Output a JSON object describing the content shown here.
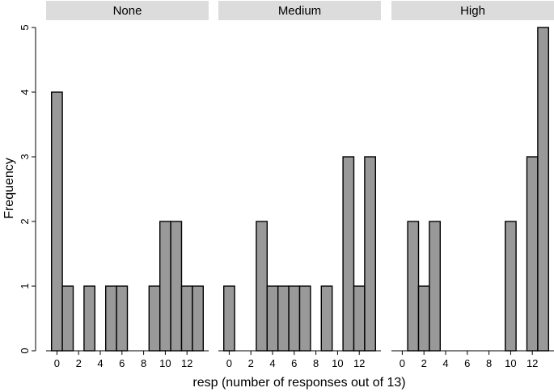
{
  "chart_data": {
    "type": "bar",
    "subtype": "faceted-histogram",
    "xlabel": "resp (number of responses out of 13)",
    "ylabel": "Frequency",
    "x_ticks": [
      0,
      2,
      4,
      6,
      8,
      10,
      12
    ],
    "y_ticks": [
      0,
      1,
      2,
      3,
      4,
      5
    ],
    "xlim": [
      -1,
      14
    ],
    "ylim": [
      0,
      5
    ],
    "bar_color": "#999999",
    "strip_color": "#dcdcdc",
    "panels": [
      {
        "label": "None",
        "bars": [
          {
            "x": 0,
            "y": 4
          },
          {
            "x": 1,
            "y": 1
          },
          {
            "x": 3,
            "y": 1
          },
          {
            "x": 5,
            "y": 1
          },
          {
            "x": 6,
            "y": 1
          },
          {
            "x": 9,
            "y": 1
          },
          {
            "x": 10,
            "y": 2
          },
          {
            "x": 11,
            "y": 2
          },
          {
            "x": 12,
            "y": 1
          },
          {
            "x": 13,
            "y": 1
          }
        ]
      },
      {
        "label": "Medium",
        "bars": [
          {
            "x": 0,
            "y": 1
          },
          {
            "x": 3,
            "y": 2
          },
          {
            "x": 4,
            "y": 1
          },
          {
            "x": 5,
            "y": 1
          },
          {
            "x": 6,
            "y": 1
          },
          {
            "x": 7,
            "y": 1
          },
          {
            "x": 9,
            "y": 1
          },
          {
            "x": 11,
            "y": 3
          },
          {
            "x": 12,
            "y": 1
          },
          {
            "x": 13,
            "y": 3
          }
        ]
      },
      {
        "label": "High",
        "bars": [
          {
            "x": 1,
            "y": 2
          },
          {
            "x": 2,
            "y": 1
          },
          {
            "x": 3,
            "y": 2
          },
          {
            "x": 10,
            "y": 2
          },
          {
            "x": 12,
            "y": 3
          },
          {
            "x": 13,
            "y": 5
          }
        ]
      }
    ]
  }
}
